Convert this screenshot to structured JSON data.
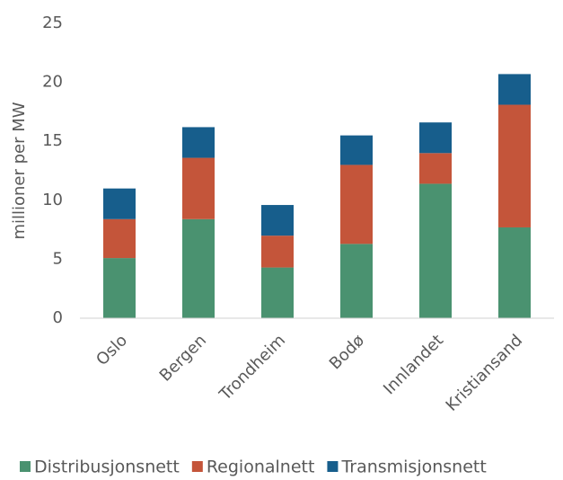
{
  "chart_data": {
    "type": "stacked_bar",
    "y_label": "millioner per MW",
    "categories": [
      "Oslo",
      "Bergen",
      "Trondheim",
      "Bodø",
      "Innlandet",
      "Kristiansand"
    ],
    "series": [
      {
        "name": "Distribusjonsnett",
        "color": "#4a9270",
        "values": [
          5.1,
          8.4,
          4.3,
          6.3,
          11.4,
          7.7
        ]
      },
      {
        "name": "Regionalnett",
        "color": "#c4553a",
        "values": [
          3.3,
          5.2,
          2.7,
          6.7,
          2.6,
          10.4
        ]
      },
      {
        "name": "Transmisjonsnett",
        "color": "#175e8c",
        "values": [
          2.6,
          2.6,
          2.6,
          2.5,
          2.6,
          2.6
        ]
      }
    ],
    "ylim": [
      0,
      25
    ],
    "yticks": [
      0,
      5,
      10,
      15,
      20,
      25
    ],
    "grid": false,
    "legend": "bottom"
  }
}
